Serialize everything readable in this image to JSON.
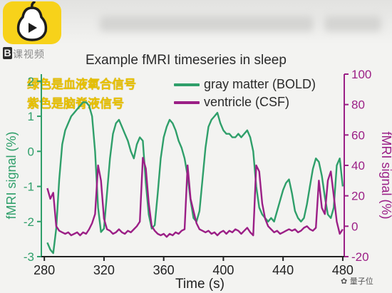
{
  "header": {
    "logo_icon": "yellow-play-pear-logo",
    "brand_mark": "B",
    "brand_text": "课视频"
  },
  "overlay_captions": {
    "green": "绿色是血液氧合信号",
    "purple": "紫色是脑脊液信号"
  },
  "watermark": "量子位",
  "colors": {
    "gray_matter": "#2f9f6a",
    "ventricle": "#9b1f86",
    "caption": "#e8c000"
  },
  "chart_data": {
    "type": "line",
    "title": "Example fMRI timeseries in sleep",
    "xlabel": "Time (s)",
    "ylabel_left": "fMRI signal (%)",
    "ylabel_right": "fMRI signal (%)",
    "xlim": [
      278,
      481
    ],
    "ylim_left": [
      -3,
      2.2
    ],
    "ylim_right": [
      -20,
      100
    ],
    "x_ticks": [
      "280",
      "320",
      "360",
      "400",
      "440",
      "480"
    ],
    "y_left_ticks": [
      "-3",
      "-2",
      "-1",
      "0",
      "1",
      "2"
    ],
    "y_right_ticks": [
      "-20",
      "0",
      "20",
      "40",
      "60",
      "80",
      "100"
    ],
    "legend": {
      "position": "top-right"
    },
    "series": [
      {
        "name": "gray matter (BOLD)",
        "axis": "left",
        "x": [
          282,
          284,
          286,
          288,
          290,
          292,
          294,
          296,
          298,
          300,
          302,
          304,
          306,
          308,
          310,
          312,
          314,
          316,
          318,
          320,
          322,
          324,
          326,
          328,
          330,
          332,
          334,
          336,
          338,
          340,
          342,
          344,
          346,
          348,
          350,
          352,
          354,
          356,
          358,
          360,
          362,
          364,
          366,
          368,
          370,
          372,
          374,
          376,
          378,
          380,
          382,
          384,
          386,
          388,
          390,
          392,
          394,
          396,
          398,
          400,
          402,
          404,
          406,
          408,
          410,
          412,
          414,
          416,
          418,
          420,
          422,
          424,
          426,
          428,
          430,
          432,
          434,
          436,
          438,
          440,
          442,
          444,
          446,
          448,
          450,
          452,
          454,
          456,
          458,
          460,
          462,
          464,
          466,
          468,
          470,
          472,
          474,
          476,
          478,
          480
        ],
        "y": [
          -2.6,
          -2.8,
          -2.9,
          -2.2,
          -0.8,
          0.2,
          0.6,
          0.8,
          1.0,
          1.1,
          1.2,
          1.3,
          1.4,
          1.4,
          1.3,
          1.0,
          0.0,
          -1.6,
          -2.3,
          -2.2,
          -1.2,
          -0.2,
          0.5,
          0.8,
          0.9,
          0.7,
          0.5,
          0.3,
          0.0,
          -0.2,
          0.2,
          0.4,
          0.3,
          -0.9,
          -1.8,
          -2.2,
          -2.1,
          -1.2,
          -0.2,
          0.4,
          0.7,
          0.9,
          0.8,
          0.6,
          0.3,
          0.1,
          -0.2,
          -0.7,
          -1.4,
          -1.9,
          -2.0,
          -1.7,
          -0.8,
          0.1,
          0.7,
          0.9,
          1.0,
          1.1,
          0.8,
          0.6,
          0.5,
          0.5,
          0.4,
          0.4,
          0.5,
          0.4,
          0.5,
          0.6,
          0.4,
          0.0,
          -1.0,
          -1.6,
          -1.8,
          -1.9,
          -2.0,
          -1.9,
          -2.0,
          -1.7,
          -1.4,
          -1.1,
          -0.9,
          -0.8,
          -1.2,
          -1.7,
          -1.9,
          -2.0,
          -1.9,
          -1.5,
          -1.0,
          -0.5,
          -0.2,
          -0.3,
          -0.7,
          -1.3,
          -1.8,
          -1.9,
          -1.6,
          -0.4,
          -0.2,
          -1.0
        ]
      },
      {
        "name": "ventricle (CSF)",
        "axis": "right",
        "x": [
          282,
          284,
          286,
          288,
          290,
          292,
          294,
          296,
          298,
          300,
          302,
          304,
          306,
          308,
          310,
          312,
          314,
          316,
          318,
          320,
          322,
          324,
          326,
          328,
          330,
          332,
          334,
          336,
          338,
          340,
          342,
          344,
          346,
          348,
          350,
          352,
          354,
          356,
          358,
          360,
          362,
          364,
          366,
          368,
          370,
          372,
          374,
          376,
          378,
          380,
          382,
          384,
          386,
          388,
          390,
          392,
          394,
          396,
          398,
          400,
          402,
          404,
          406,
          408,
          410,
          412,
          414,
          416,
          418,
          420,
          422,
          424,
          426,
          428,
          430,
          432,
          434,
          436,
          438,
          440,
          442,
          444,
          446,
          448,
          450,
          452,
          454,
          456,
          458,
          460,
          462,
          464,
          466,
          468,
          470,
          472,
          474,
          476,
          478,
          480
        ],
        "y": [
          25,
          18,
          22,
          0,
          -3,
          -4,
          -5,
          -4,
          -6,
          -5,
          -4,
          -6,
          -4,
          -5,
          -2,
          2,
          8,
          40,
          30,
          5,
          -2,
          -3,
          -5,
          -4,
          -2,
          -4,
          -5,
          -3,
          -4,
          -2,
          0,
          3,
          45,
          38,
          15,
          0,
          -3,
          -5,
          -6,
          -5,
          -7,
          -5,
          -6,
          -4,
          -5,
          -3,
          -2,
          40,
          18,
          10,
          2,
          -2,
          -3,
          -4,
          -3,
          -5,
          -4,
          -6,
          -4,
          -3,
          -5,
          -3,
          -4,
          -2,
          -3,
          -5,
          -3,
          -1,
          -4,
          -6,
          40,
          36,
          15,
          5,
          0,
          -2,
          -4,
          -3,
          -5,
          -4,
          -3,
          -2,
          -3,
          -2,
          -4,
          -3,
          -1,
          0,
          -2,
          -3,
          -1,
          30,
          12,
          8,
          30,
          36,
          20,
          3,
          -5,
          -2
        ]
      }
    ]
  }
}
